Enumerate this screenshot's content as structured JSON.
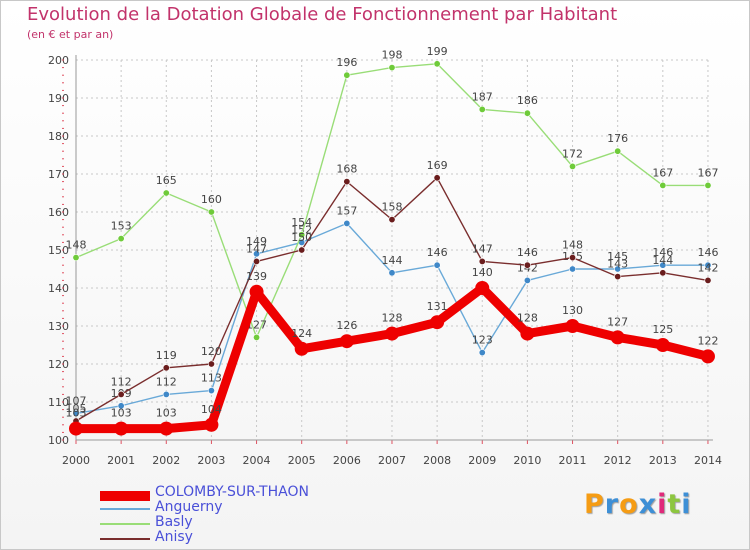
{
  "title": "Evolution de la Dotation Globale de Fonctionnement par Habitant",
  "subtitle": "(en € et par an)",
  "logo": {
    "text": "Proxiti",
    "letter_colors": [
      "#f59c14",
      "#3d8fd6",
      "#f59c14",
      "#3d8fd6",
      "#e0297a",
      "#8dc63f",
      "#3d8fd6"
    ]
  },
  "colors": {
    "title": "#c2336b",
    "axis_text": "#444444",
    "grid": "#c8c8c8"
  },
  "chart_data": {
    "type": "line",
    "title": "Evolution de la Dotation Globale de Fonctionnement par Habitant",
    "subtitle": "(en € et par an)",
    "xlabel": "",
    "ylabel": "",
    "ylim": [
      100,
      200
    ],
    "yticks": [
      100,
      110,
      120,
      130,
      140,
      150,
      160,
      170,
      180,
      190,
      200
    ],
    "x": [
      "2000",
      "2001",
      "2002",
      "2003",
      "2004",
      "2005",
      "2006",
      "2007",
      "2008",
      "2009",
      "2010",
      "2011",
      "2012",
      "2013",
      "2014"
    ],
    "grid": true,
    "legend_position": "bottom-left",
    "series": [
      {
        "name": "COLOMBY-SUR-THAON",
        "color": "#ee0000",
        "marker_color": "#ee0000",
        "emphasis": true,
        "values": [
          103,
          103,
          103,
          104,
          139,
          124,
          126,
          128,
          131,
          140,
          128,
          130,
          127,
          125,
          122
        ]
      },
      {
        "name": "Anguerny",
        "color": "#69a9d8",
        "marker_color": "#3f88c8",
        "emphasis": false,
        "values": [
          107,
          109,
          112,
          113,
          149,
          152,
          157,
          144,
          146,
          123,
          142,
          145,
          145,
          146,
          146
        ]
      },
      {
        "name": "Basly",
        "color": "#99dd77",
        "marker_color": "#6fcb3a",
        "emphasis": false,
        "values": [
          148,
          153,
          165,
          160,
          127,
          154,
          196,
          198,
          199,
          187,
          186,
          172,
          176,
          167,
          167
        ]
      },
      {
        "name": "Anisy",
        "color": "#7a2e2e",
        "marker_color": "#6a1d1d",
        "emphasis": false,
        "values": [
          105,
          112,
          119,
          120,
          147,
          150,
          168,
          158,
          169,
          147,
          146,
          148,
          143,
          144,
          142
        ]
      }
    ]
  }
}
